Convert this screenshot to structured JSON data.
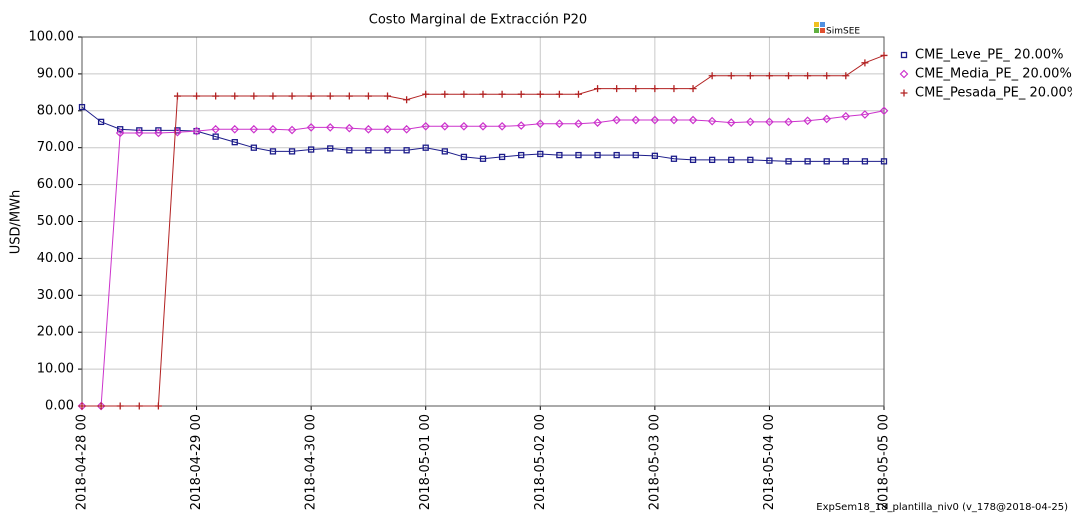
{
  "chart_data": {
    "type": "line",
    "title": "Costo Marginal de Extracción P20",
    "y_label": "USD/MWh",
    "logo": "SimSEE",
    "footer": "ExpSem18_18_plantilla_niv0 (v_178@2018-04-25)",
    "x": [
      "2018-04-28 00",
      "2018-04-28 04",
      "2018-04-28 08",
      "2018-04-28 12",
      "2018-04-28 16",
      "2018-04-28 20",
      "2018-04-29 00",
      "2018-04-29 04",
      "2018-04-29 08",
      "2018-04-29 12",
      "2018-04-29 16",
      "2018-04-29 20",
      "2018-04-30 00",
      "2018-04-30 04",
      "2018-04-30 08",
      "2018-04-30 12",
      "2018-04-30 16",
      "2018-04-30 20",
      "2018-05-01 00",
      "2018-05-01 04",
      "2018-05-01 08",
      "2018-05-01 12",
      "2018-05-01 16",
      "2018-05-01 20",
      "2018-05-02 00",
      "2018-05-02 04",
      "2018-05-02 08",
      "2018-05-02 12",
      "2018-05-02 16",
      "2018-05-02 20",
      "2018-05-03 00",
      "2018-05-03 04",
      "2018-05-03 08",
      "2018-05-03 12",
      "2018-05-03 16",
      "2018-05-03 20",
      "2018-05-04 00",
      "2018-05-04 04",
      "2018-05-04 08",
      "2018-05-04 12",
      "2018-05-04 16",
      "2018-05-04 20",
      "2018-05-05 00"
    ],
    "series": [
      {
        "name": "CME_Leve_PE_ 20.00%",
        "color": "#1c1c8a",
        "marker": "square",
        "values": [
          81,
          77,
          75,
          74.7,
          74.7,
          74.7,
          74.5,
          73,
          71.5,
          70,
          69,
          69,
          69.5,
          69.8,
          69.3,
          69.3,
          69.3,
          69.3,
          70,
          69,
          67.5,
          67,
          67.5,
          68,
          68.3,
          68,
          68,
          68,
          68,
          68,
          67.8,
          67,
          66.7,
          66.7,
          66.7,
          66.7,
          66.5,
          66.3,
          66.3,
          66.3,
          66.3,
          66.3,
          66.3
        ]
      },
      {
        "name": "CME_Media_PE_ 20.00%",
        "color": "#cc33cc",
        "marker": "diamond",
        "values": [
          0,
          0,
          74,
          74,
          74,
          74.2,
          74.5,
          75,
          75,
          75,
          75,
          74.8,
          75.5,
          75.5,
          75.3,
          75,
          75,
          75,
          75.8,
          75.8,
          75.8,
          75.8,
          75.8,
          76,
          76.5,
          76.5,
          76.5,
          76.8,
          77.5,
          77.5,
          77.5,
          77.5,
          77.5,
          77.2,
          76.8,
          77,
          77,
          77,
          77.3,
          77.8,
          78.5,
          79,
          80
        ]
      },
      {
        "name": "CME_Pesada_PE_ 20.00%",
        "color": "#b22222",
        "marker": "plus",
        "values": [
          0,
          0,
          0,
          0,
          0,
          84,
          84,
          84,
          84,
          84,
          84,
          84,
          84,
          84,
          84,
          84,
          84,
          83,
          84.5,
          84.5,
          84.5,
          84.5,
          84.5,
          84.5,
          84.5,
          84.5,
          84.5,
          86,
          86,
          86,
          86,
          86,
          86,
          89.5,
          89.5,
          89.5,
          89.5,
          89.5,
          89.5,
          89.5,
          89.5,
          93,
          95
        ]
      }
    ],
    "xlim": [
      "2018-04-28 00",
      "2018-05-05 00"
    ],
    "xticks": [
      "2018-04-28 00",
      "2018-04-29 00",
      "2018-04-30 00",
      "2018-05-01 00",
      "2018-05-02 00",
      "2018-05-03 00",
      "2018-05-04 00",
      "2018-05-05 00"
    ],
    "ylim": [
      0,
      100
    ],
    "yticks": [
      {
        "value": 0,
        "label": "0.00"
      },
      {
        "value": 10,
        "label": "10.00"
      },
      {
        "value": 20,
        "label": "20.00"
      },
      {
        "value": 30,
        "label": "30.00"
      },
      {
        "value": 40,
        "label": "40.00"
      },
      {
        "value": 50,
        "label": "50.00"
      },
      {
        "value": 60,
        "label": "60.00"
      },
      {
        "value": 70,
        "label": "70.00"
      },
      {
        "value": 80,
        "label": "80.00"
      },
      {
        "value": 90,
        "label": "90.00"
      },
      {
        "value": 100,
        "label": "100.00"
      }
    ],
    "grid": true,
    "legend": "right"
  }
}
